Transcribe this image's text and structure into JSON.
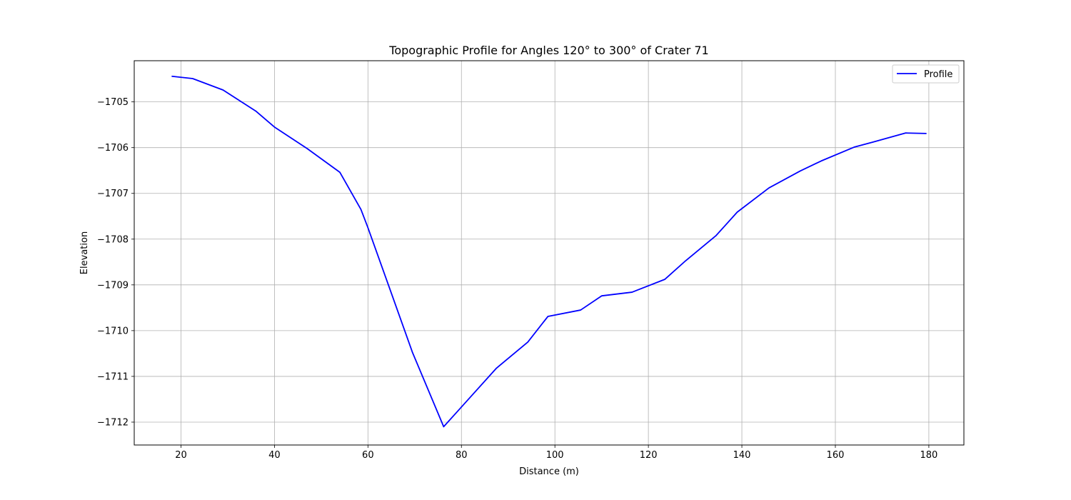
{
  "chart_data": {
    "type": "line",
    "title": "Topographic Profile for Angles 120° to 300° of Crater 71",
    "xlabel": "Distance (m)",
    "ylabel": "Elevation",
    "xlim": [
      10,
      187.5
    ],
    "ylim": [
      -1712.5,
      -1704.1
    ],
    "xticks": [
      20,
      40,
      60,
      80,
      100,
      120,
      140,
      160,
      180
    ],
    "yticks": [
      -1712,
      -1711,
      -1710,
      -1709,
      -1708,
      -1707,
      -1706,
      -1705
    ],
    "grid": true,
    "legend_position": "top-right",
    "series": [
      {
        "name": "Profile",
        "color": "#0000ff",
        "x": [
          18,
          22.5,
          29,
          36,
          40,
          47,
          54,
          58.5,
          60,
          65,
          69.5,
          76.2,
          81.5,
          87.5,
          94.2,
          98.5,
          105.5,
          110,
          116.5,
          123.5,
          128,
          134.5,
          139,
          145.8,
          152.5,
          157,
          164,
          168,
          175,
          179.5
        ],
        "y": [
          -1704.44,
          -1704.49,
          -1704.74,
          -1705.2,
          -1705.55,
          -1706.02,
          -1706.54,
          -1707.35,
          -1707.75,
          -1709.18,
          -1710.47,
          -1712.1,
          -1711.5,
          -1710.82,
          -1710.25,
          -1709.69,
          -1709.55,
          -1709.24,
          -1709.16,
          -1708.88,
          -1708.47,
          -1707.92,
          -1707.41,
          -1706.88,
          -1706.51,
          -1706.29,
          -1705.99,
          -1705.88,
          -1705.68,
          -1705.69
        ]
      }
    ]
  }
}
